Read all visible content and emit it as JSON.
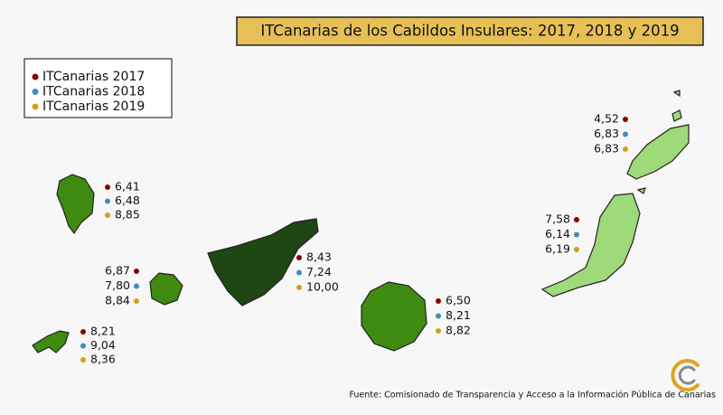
{
  "title": "ITCanarias de los Cabildos Insulares: 2017, 2018 y 2019",
  "legend": [
    {
      "name": "ITCanarias 2017",
      "color": "#8b0000"
    },
    {
      "name": "ITCanarias 2018",
      "color": "#3a8fc0"
    },
    {
      "name": "ITCanarias 2019",
      "color": "#d4a017"
    }
  ],
  "islands": [
    {
      "values": [
        6.41,
        6.48,
        8.85
      ],
      "value_labels": [
        "6,41",
        "6,48",
        "8,85"
      ]
    },
    {
      "values": [
        6.87,
        7.8,
        8.84
      ],
      "value_labels": [
        "6,87",
        "7,80",
        "8,84"
      ]
    },
    {
      "values": [
        8.43,
        7.24,
        10.0
      ],
      "value_labels": [
        "8,43",
        "7,24",
        "10,00"
      ]
    },
    {
      "values": [
        8.21,
        9.04,
        8.36
      ],
      "value_labels": [
        "8,21",
        "9,04",
        "8,36"
      ]
    },
    {
      "values": [
        6.5,
        8.21,
        8.82
      ],
      "value_labels": [
        "6,50",
        "8,21",
        "8,82"
      ]
    },
    {
      "values": [
        7.58,
        6.14,
        6.19
      ],
      "value_labels": [
        "7,58",
        "6,14",
        "6,19"
      ]
    },
    {
      "values": [
        4.52,
        6.83,
        6.83
      ],
      "value_labels": [
        "4,52",
        "6,83",
        "6,83"
      ]
    }
  ],
  "source": "Fuente: Comisionado de Transparencia y Acceso a la Información Pública de Canarias"
}
